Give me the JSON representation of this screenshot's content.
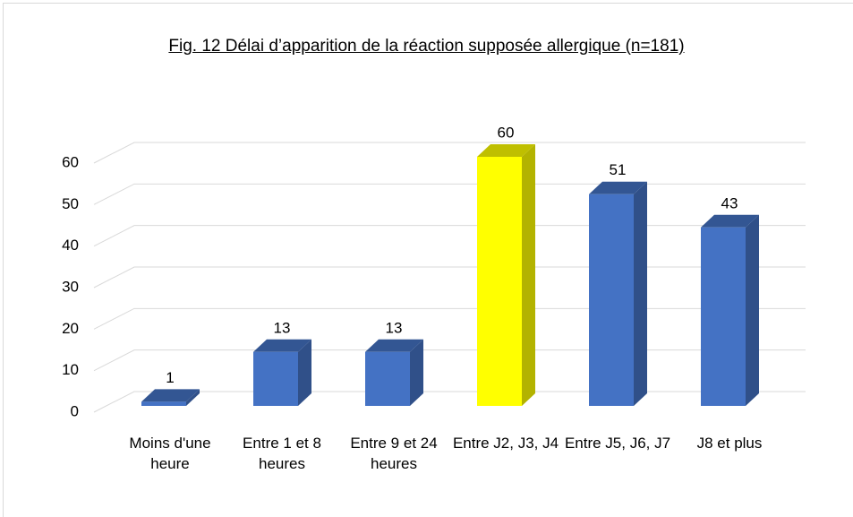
{
  "chart_data": {
    "type": "bar3d",
    "title": "Fig. 12 Délai d’apparition de la réaction supposée allergique (n=181)",
    "categories": [
      "Moins d'une heure",
      "Entre 1 et 8 heures",
      "Entre 9 et 24 heures",
      "Entre J2, J3, J4",
      "Entre J5, J6, J7",
      "J8 et plus"
    ],
    "values": [
      1,
      13,
      13,
      60,
      51,
      43
    ],
    "colors": [
      "#4472c4",
      "#4472c4",
      "#4472c4",
      "#ffff00",
      "#4472c4",
      "#4472c4"
    ],
    "ylim": [
      0,
      60
    ],
    "yticks": [
      0,
      10,
      20,
      30,
      40,
      50,
      60
    ],
    "grid": true
  }
}
